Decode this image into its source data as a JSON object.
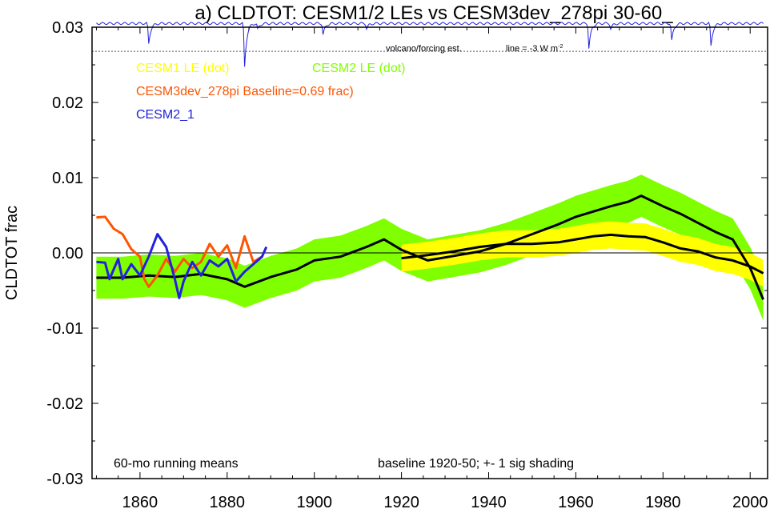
{
  "chart_data": {
    "type": "line",
    "title": "a) CLDTOT: CESM1/2 LEs vs CESM3dev_278pi 30-60_",
    "ylabel": "CLDTOT frac",
    "xlabel": "",
    "xlim": [
      1849,
      2004
    ],
    "ylim": [
      -0.03,
      0.03
    ],
    "x_ticks": [
      1860,
      1880,
      1900,
      1920,
      1940,
      1960,
      1980,
      2000
    ],
    "y_ticks": [
      -0.03,
      -0.02,
      -0.01,
      0.0,
      0.01,
      0.02,
      0.03
    ],
    "y_tick_labels": [
      "-0.03",
      "-0.02",
      "-0.01",
      "0.00",
      "0.01",
      "0.02",
      "0.03"
    ],
    "zero_line": true,
    "legend": [
      {
        "label": "CESM1 LE (dot)",
        "color": "#ffff00"
      },
      {
        "label": "CESM2 LE (dot)",
        "color": "#80ff00"
      },
      {
        "label": "CESM3dev_278pi Baseline=0.69 frac)",
        "color": "#ff5500"
      },
      {
        "label": "CESM2_1",
        "color": "#2222dd"
      }
    ],
    "annotations": {
      "volcano_label": "volcano/forcing est.",
      "line_label": "line = -3 W m",
      "line_label_sup": "-2",
      "bottom_left": "60-mo running means",
      "bottom_right": "baseline 1920-50; +- 1 sig shading"
    },
    "volcano_ref_level": 0.0268,
    "volcano_events": [
      {
        "x": 1862,
        "depth": 0.0027
      },
      {
        "x": 1884,
        "depth": 0.0058
      },
      {
        "x": 1887,
        "depth": 0.0008
      },
      {
        "x": 1902,
        "depth": 0.0015
      },
      {
        "x": 1912,
        "depth": 0.0007
      },
      {
        "x": 1963,
        "depth": 0.0033
      },
      {
        "x": 1968,
        "depth": 0.0007
      },
      {
        "x": 1982,
        "depth": 0.0023
      },
      {
        "x": 1991,
        "depth": 0.003
      }
    ],
    "series": [
      {
        "name": "CESM2 LE",
        "color": "#80ff00",
        "x": [
          1850,
          1856,
          1862,
          1868,
          1874,
          1880,
          1884,
          1890,
          1896,
          1900,
          1906,
          1912,
          1916,
          1920,
          1926,
          1932,
          1938,
          1944,
          1950,
          1956,
          1960,
          1964,
          1968,
          1972,
          1975,
          1980,
          1984,
          1988,
          1992,
          1996,
          2000,
          2003
        ],
        "values": [
          -0.0033,
          -0.0033,
          -0.003,
          -0.0032,
          -0.0028,
          -0.0035,
          -0.0045,
          -0.0032,
          -0.0022,
          -0.001,
          -0.0005,
          0.0008,
          0.0018,
          0.0004,
          -0.001,
          -0.0004,
          0.0002,
          0.0012,
          0.0025,
          0.0038,
          0.0048,
          0.0055,
          0.0062,
          0.0068,
          0.0076,
          0.0062,
          0.0052,
          0.004,
          0.0028,
          0.0018,
          -0.002,
          -0.0062
        ],
        "spread": 0.0028
      },
      {
        "name": "CESM1 LE",
        "color": "#ffff00",
        "x": [
          1920,
          1926,
          1932,
          1938,
          1944,
          1950,
          1956,
          1960,
          1964,
          1968,
          1972,
          1976,
          1980,
          1984,
          1988,
          1992,
          1996,
          2000,
          2003
        ],
        "values": [
          -0.0007,
          -0.0003,
          0.0002,
          0.0008,
          0.0012,
          0.0012,
          0.0014,
          0.0018,
          0.0022,
          0.0024,
          0.0022,
          0.0021,
          0.0014,
          0.0006,
          0.0002,
          -0.0006,
          -0.001,
          -0.0018,
          -0.0027
        ],
        "spread": 0.0018
      },
      {
        "name": "CESM3dev_278pi",
        "color": "#ff5500",
        "x": [
          1850,
          1852,
          1854,
          1856,
          1858,
          1860,
          1861,
          1862,
          1864,
          1866,
          1868,
          1870,
          1872,
          1874,
          1876,
          1878,
          1880,
          1882,
          1884,
          1886,
          1888
        ],
        "values": [
          0.0047,
          0.0048,
          0.0032,
          0.0025,
          0.0005,
          -0.0005,
          -0.0035,
          -0.0045,
          -0.003,
          -0.0008,
          -0.0025,
          -0.0008,
          -0.002,
          -0.0012,
          0.0012,
          -0.0005,
          0.001,
          -0.002,
          0.0022,
          -0.0012,
          -0.0005
        ],
        "spread": 0
      },
      {
        "name": "CESM2_1",
        "color": "#2222dd",
        "x": [
          1850,
          1852,
          1853,
          1855,
          1856,
          1858,
          1860,
          1862,
          1864,
          1866,
          1868,
          1869,
          1870,
          1872,
          1874,
          1876,
          1878,
          1880,
          1882,
          1884,
          1886,
          1888,
          1889
        ],
        "values": [
          -0.0012,
          -0.0013,
          -0.0035,
          -0.0008,
          -0.0035,
          -0.0015,
          -0.003,
          -0.0005,
          0.0025,
          0.0008,
          -0.0035,
          -0.006,
          -0.0038,
          -0.0012,
          -0.003,
          -0.001,
          -0.0018,
          -0.0008,
          -0.0038,
          -0.0025,
          -0.0015,
          -0.0005,
          0.0008
        ],
        "spread": 0
      }
    ]
  }
}
